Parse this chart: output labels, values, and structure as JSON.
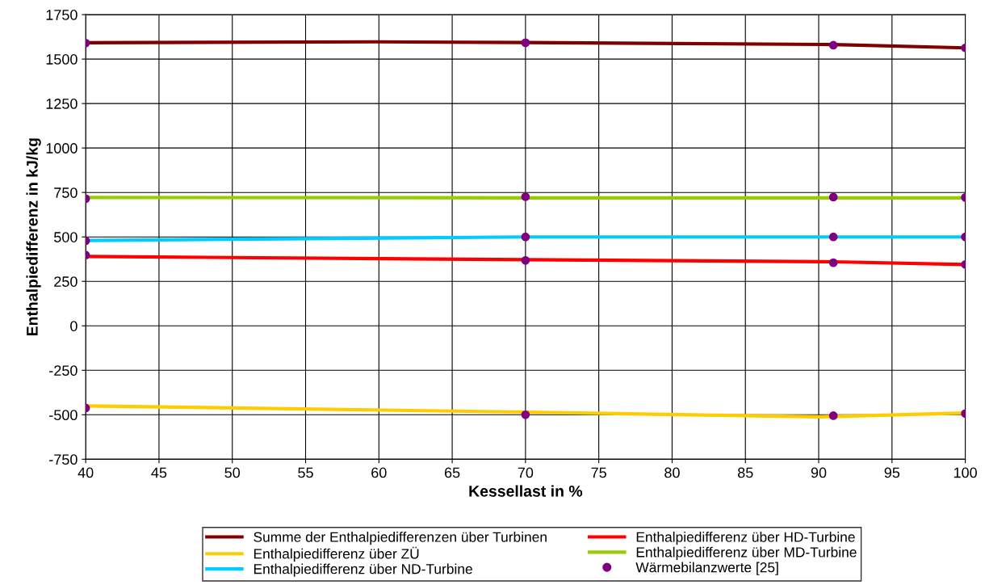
{
  "chart_data": {
    "type": "line",
    "xlabel": "Kessellast in %",
    "ylabel": "Enthalpiedifferenz in kJ/kg",
    "xlim": [
      40,
      100
    ],
    "xticks": [
      40,
      45,
      50,
      55,
      60,
      65,
      70,
      75,
      80,
      85,
      90,
      95,
      100
    ],
    "ylim": [
      -750,
      1750
    ],
    "yticks": [
      -750,
      -500,
      -250,
      0,
      250,
      500,
      750,
      1000,
      1250,
      1500,
      1750
    ],
    "grid": true,
    "legend": "bottom",
    "marker": "none",
    "line_style": "solid",
    "series": [
      {
        "name": "Summe der Enthalpiedifferenzen über Turbinen",
        "color": "#7f0000",
        "x": [
          40,
          60,
          70,
          91,
          100
        ],
        "values": [
          1592,
          1597,
          1593,
          1582,
          1563
        ]
      },
      {
        "name": "Enthalpiedifferenz über HD-Turbine",
        "color": "#ff0000",
        "x": [
          40,
          70,
          91,
          100
        ],
        "values": [
          390,
          372,
          360,
          345
        ]
      },
      {
        "name": "Enthalpiedifferenz über ZÜ",
        "color": "#ffcc00",
        "x": [
          40,
          70,
          90,
          100
        ],
        "values": [
          -450,
          -485,
          -512,
          -490
        ]
      },
      {
        "name": "Enthalpiedifferenz über MD-Turbine",
        "color": "#99cc00",
        "x": [
          40,
          70,
          100
        ],
        "values": [
          722,
          720,
          720
        ]
      },
      {
        "name": "Enthalpiedifferenz über ND-Turbine",
        "color": "#00ccff",
        "x": [
          40,
          70,
          91,
          100
        ],
        "values": [
          480,
          500,
          500,
          500
        ]
      },
      {
        "name": "Wärmebilanzwerte [25]",
        "type": "scatter",
        "marker": "circle",
        "color": "#800080",
        "x": [
          40,
          40,
          40,
          40,
          40,
          70,
          70,
          70,
          70,
          70,
          91,
          91,
          91,
          91,
          91,
          100,
          100,
          100,
          100,
          100
        ],
        "values": [
          1590,
          715,
          478,
          398,
          -462,
          1592,
          726,
          500,
          368,
          -500,
          1578,
          724,
          500,
          355,
          -505,
          1563,
          722,
          500,
          345,
          -493
        ]
      }
    ]
  }
}
